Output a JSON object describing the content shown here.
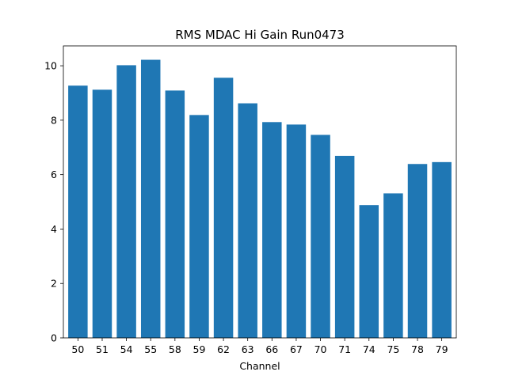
{
  "chart_data": {
    "type": "bar",
    "title": "RMS MDAC Hi Gain Run0473",
    "xlabel": "Channel",
    "ylabel": "",
    "categories": [
      "50",
      "51",
      "54",
      "55",
      "58",
      "59",
      "62",
      "63",
      "66",
      "67",
      "70",
      "71",
      "74",
      "75",
      "78",
      "79"
    ],
    "values": [
      9.27,
      9.12,
      10.02,
      10.22,
      9.09,
      8.19,
      9.56,
      8.62,
      7.93,
      7.84,
      7.46,
      6.69,
      4.88,
      5.31,
      6.39,
      6.46
    ],
    "ylim": [
      0,
      10.73
    ],
    "yticks": [
      0,
      2,
      4,
      6,
      8,
      10
    ],
    "bar_color": "#1f77b4",
    "grid": false,
    "legend": false
  }
}
